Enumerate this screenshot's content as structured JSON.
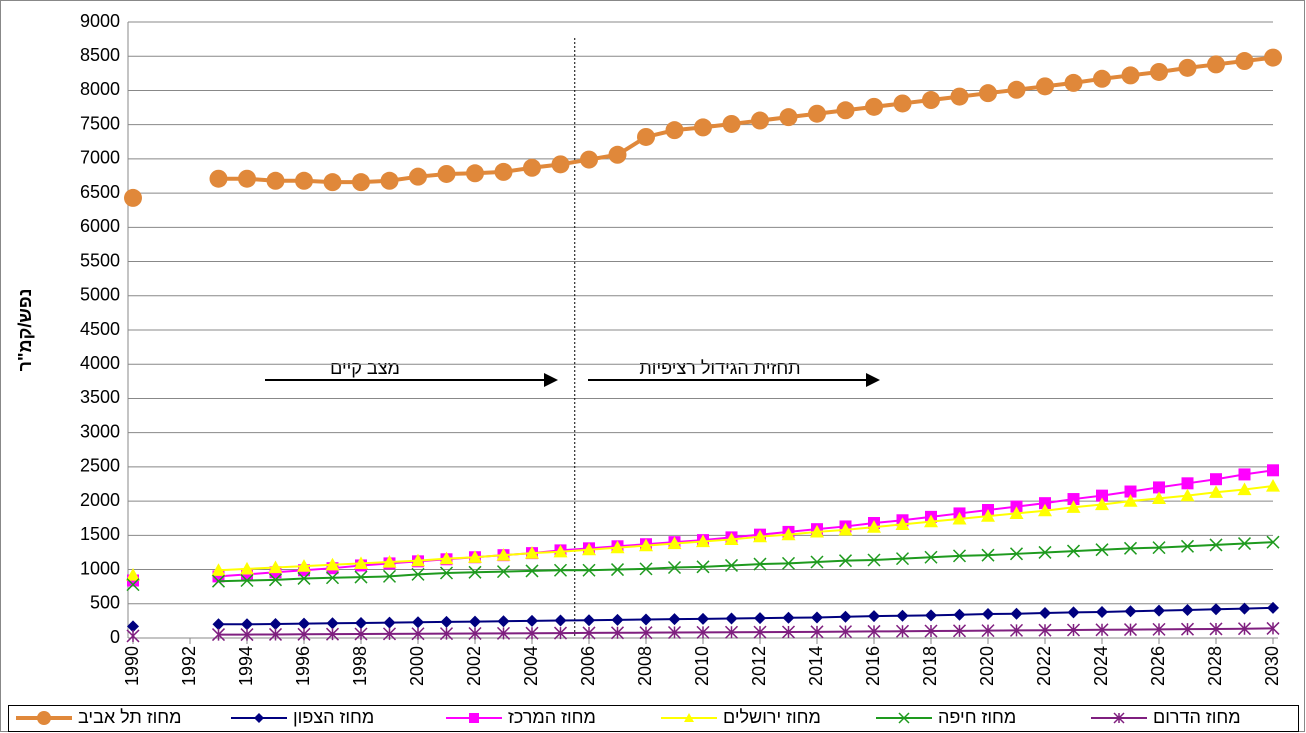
{
  "chart_data": {
    "type": "line",
    "ylabel": "נפש/קמ\"ר",
    "annotations": [
      "מצב קיים",
      "תחזית הגידול רציפיות"
    ],
    "divider_x": 2005.5,
    "x": [
      1990,
      1991,
      1992,
      1993,
      1994,
      1995,
      1996,
      1997,
      1998,
      1999,
      2000,
      2001,
      2002,
      2003,
      2004,
      2005,
      2006,
      2007,
      2008,
      2009,
      2010,
      2011,
      2012,
      2013,
      2014,
      2015,
      2016,
      2017,
      2018,
      2019,
      2020,
      2021,
      2022,
      2023,
      2024,
      2025,
      2026,
      2027,
      2028,
      2029,
      2030
    ],
    "xlim": [
      1990,
      2030
    ],
    "xticks": [
      1990,
      1992,
      1994,
      1996,
      1998,
      2000,
      2002,
      2004,
      2006,
      2008,
      2010,
      2012,
      2014,
      2016,
      2018,
      2020,
      2022,
      2024,
      2026,
      2028,
      2030
    ],
    "ylim": [
      0,
      9000
    ],
    "yticks": [
      0,
      500,
      1000,
      1500,
      2000,
      2500,
      3000,
      3500,
      4000,
      4500,
      5000,
      5500,
      6000,
      6500,
      7000,
      7500,
      8000,
      8500,
      9000
    ],
    "grid": true,
    "legend": "bottom",
    "series": [
      {
        "name": "מחוז תל אביב",
        "color": "#e0883a",
        "marker": "circle",
        "values": [
          6430,
          null,
          null,
          6710,
          6710,
          6680,
          6680,
          6660,
          6660,
          6680,
          6740,
          6780,
          6790,
          6810,
          6870,
          6920,
          6990,
          7060,
          7320,
          7420,
          7460,
          7510,
          7560,
          7610,
          7660,
          7710,
          7760,
          7810,
          7860,
          7910,
          7960,
          8010,
          8060,
          8110,
          8170,
          8220,
          8270,
          8330,
          8380,
          8430,
          8480
        ]
      },
      {
        "name": "מחוז הצפון",
        "color": "#00007f",
        "marker": "diamond",
        "values": [
          170,
          null,
          null,
          200,
          200,
          205,
          210,
          215,
          220,
          225,
          230,
          235,
          240,
          245,
          250,
          255,
          260,
          265,
          270,
          275,
          280,
          285,
          290,
          295,
          300,
          310,
          320,
          325,
          330,
          340,
          350,
          355,
          365,
          375,
          380,
          390,
          400,
          410,
          420,
          430,
          440
        ]
      },
      {
        "name": "מחוז המרכז",
        "color": "#ff00ff",
        "marker": "square",
        "values": [
          840,
          null,
          null,
          900,
          930,
          960,
          990,
          1020,
          1060,
          1090,
          1120,
          1150,
          1180,
          1210,
          1240,
          1280,
          1310,
          1340,
          1370,
          1400,
          1430,
          1470,
          1510,
          1550,
          1590,
          1630,
          1680,
          1720,
          1770,
          1820,
          1870,
          1920,
          1970,
          2030,
          2080,
          2140,
          2200,
          2260,
          2320,
          2390,
          2450
        ]
      },
      {
        "name": "מחוז ירושלים",
        "color": "#ffff00",
        "marker": "triangle",
        "values": [
          920,
          null,
          null,
          990,
          1010,
          1030,
          1050,
          1070,
          1090,
          1110,
          1130,
          1160,
          1180,
          1210,
          1240,
          1260,
          1290,
          1320,
          1350,
          1380,
          1410,
          1440,
          1480,
          1510,
          1550,
          1580,
          1620,
          1660,
          1700,
          1740,
          1780,
          1820,
          1860,
          1910,
          1950,
          2000,
          2040,
          2080,
          2130,
          2170,
          2220
        ]
      },
      {
        "name": "מחוז חיפה",
        "color": "#1e9a1e",
        "marker": "x",
        "values": [
          780,
          null,
          null,
          830,
          840,
          850,
          870,
          880,
          890,
          900,
          930,
          950,
          960,
          970,
          980,
          990,
          990,
          1000,
          1010,
          1030,
          1040,
          1060,
          1080,
          1090,
          1110,
          1130,
          1140,
          1160,
          1180,
          1200,
          1210,
          1230,
          1250,
          1270,
          1290,
          1310,
          1320,
          1340,
          1360,
          1380,
          1400
        ]
      },
      {
        "name": "מחוז הדרום",
        "color": "#7f1f7f",
        "marker": "star",
        "values": [
          30,
          null,
          null,
          50,
          50,
          52,
          54,
          56,
          58,
          60,
          62,
          64,
          66,
          68,
          70,
          72,
          74,
          76,
          78,
          80,
          82,
          84,
          86,
          88,
          90,
          93,
          96,
          99,
          102,
          105,
          108,
          111,
          114,
          117,
          120,
          123,
          126,
          129,
          132,
          136,
          140
        ]
      }
    ]
  }
}
